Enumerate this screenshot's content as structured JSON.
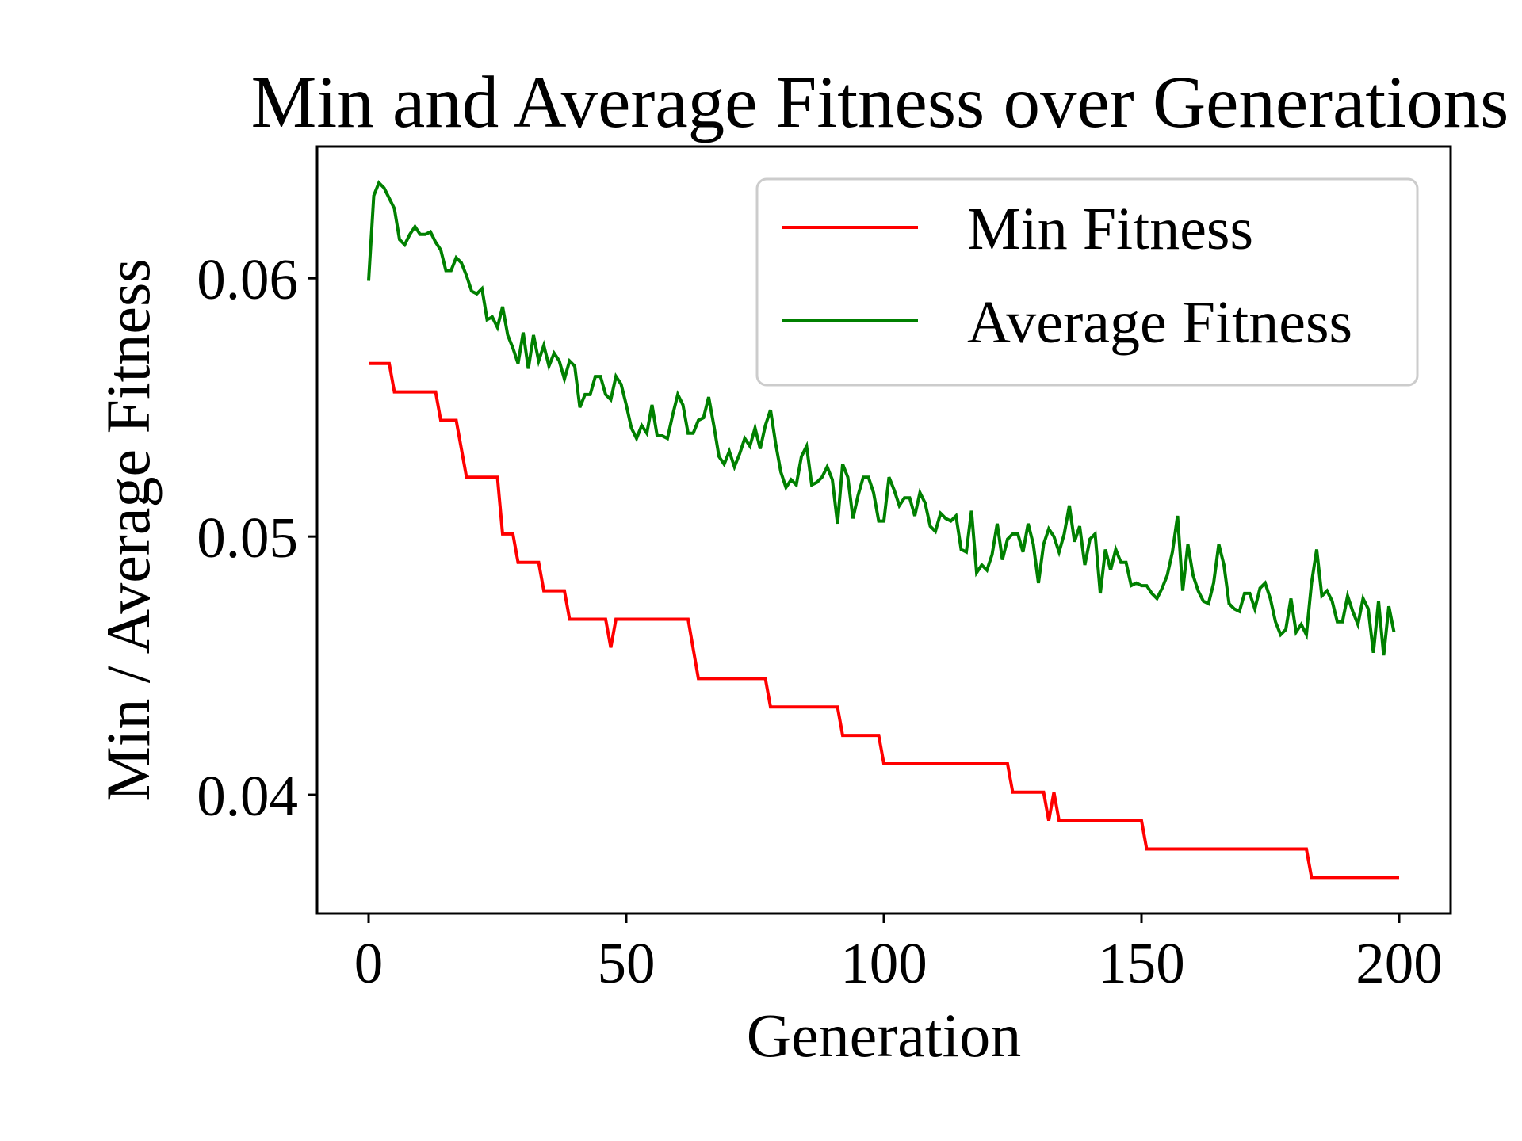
{
  "chart_data": {
    "type": "line",
    "title": "Min and Average Fitness over Generations",
    "xlabel": "Generation",
    "ylabel": "Min / Average Fitness",
    "xlim": [
      -10,
      210
    ],
    "ylim": [
      0.0354,
      0.0651
    ],
    "xticks": [
      0,
      50,
      100,
      150,
      200
    ],
    "yticks": [
      0.04,
      0.05,
      0.06
    ],
    "xtick_labels": [
      "0",
      "50",
      "100",
      "150",
      "200"
    ],
    "ytick_labels": [
      "0.04",
      "0.05",
      "0.06"
    ],
    "grid": false,
    "legend": {
      "position": "top-right"
    },
    "series": [
      {
        "name": "Min Fitness",
        "color": "#ff0000",
        "line_style": "step",
        "points": [
          [
            0,
            0.0567
          ],
          [
            4,
            0.0567
          ],
          [
            5,
            0.0556
          ],
          [
            13,
            0.0556
          ],
          [
            14,
            0.0545
          ],
          [
            17,
            0.0545
          ],
          [
            19,
            0.0523
          ],
          [
            25,
            0.0523
          ],
          [
            26,
            0.0501
          ],
          [
            28,
            0.0501
          ],
          [
            29,
            0.049
          ],
          [
            33,
            0.049
          ],
          [
            34,
            0.0479
          ],
          [
            38,
            0.0479
          ],
          [
            39,
            0.0468
          ],
          [
            46,
            0.0468
          ],
          [
            47,
            0.0457
          ],
          [
            48,
            0.0468
          ],
          [
            62,
            0.0468
          ],
          [
            64,
            0.0445
          ],
          [
            77,
            0.0445
          ],
          [
            78,
            0.0434
          ],
          [
            91,
            0.0434
          ],
          [
            92,
            0.0423
          ],
          [
            99,
            0.0423
          ],
          [
            100,
            0.0412
          ],
          [
            124,
            0.0412
          ],
          [
            125,
            0.0401
          ],
          [
            131,
            0.0401
          ],
          [
            132,
            0.039
          ],
          [
            133,
            0.0401
          ],
          [
            134,
            0.039
          ],
          [
            150,
            0.039
          ],
          [
            151,
            0.0379
          ],
          [
            182,
            0.0379
          ],
          [
            183,
            0.0368
          ],
          [
            200,
            0.0368
          ]
        ]
      },
      {
        "name": "Average Fitness",
        "color": "#008000",
        "line_style": "solid",
        "points": [
          [
            0,
            0.0599
          ],
          [
            1,
            0.0632
          ],
          [
            2,
            0.0637
          ],
          [
            3,
            0.0635
          ],
          [
            4,
            0.0631
          ],
          [
            5,
            0.0627
          ],
          [
            6,
            0.0615
          ],
          [
            7,
            0.0613
          ],
          [
            8,
            0.0617
          ],
          [
            9,
            0.062
          ],
          [
            10,
            0.0617
          ],
          [
            11,
            0.0617
          ],
          [
            12,
            0.0618
          ],
          [
            13,
            0.0614
          ],
          [
            14,
            0.0611
          ],
          [
            15,
            0.0603
          ],
          [
            16,
            0.0603
          ],
          [
            17,
            0.0608
          ],
          [
            18,
            0.0606
          ],
          [
            19,
            0.0601
          ],
          [
            20,
            0.0595
          ],
          [
            21,
            0.0594
          ],
          [
            22,
            0.0596
          ],
          [
            23,
            0.0584
          ],
          [
            24,
            0.0585
          ],
          [
            25,
            0.0581
          ],
          [
            26,
            0.0589
          ],
          [
            27,
            0.0578
          ],
          [
            28,
            0.0573
          ],
          [
            29,
            0.0567
          ],
          [
            30,
            0.0579
          ],
          [
            31,
            0.0565
          ],
          [
            32,
            0.0578
          ],
          [
            33,
            0.0568
          ],
          [
            34,
            0.0574
          ],
          [
            35,
            0.0566
          ],
          [
            36,
            0.0571
          ],
          [
            37,
            0.0568
          ],
          [
            38,
            0.0561
          ],
          [
            39,
            0.0568
          ],
          [
            40,
            0.0566
          ],
          [
            41,
            0.055
          ],
          [
            42,
            0.0555
          ],
          [
            43,
            0.0555
          ],
          [
            44,
            0.0562
          ],
          [
            45,
            0.0562
          ],
          [
            46,
            0.0555
          ],
          [
            47,
            0.0553
          ],
          [
            48,
            0.0562
          ],
          [
            49,
            0.0559
          ],
          [
            50,
            0.0551
          ],
          [
            51,
            0.0542
          ],
          [
            52,
            0.0538
          ],
          [
            53,
            0.0543
          ],
          [
            54,
            0.054
          ],
          [
            55,
            0.0551
          ],
          [
            56,
            0.0539
          ],
          [
            57,
            0.0539
          ],
          [
            58,
            0.0538
          ],
          [
            59,
            0.0547
          ],
          [
            60,
            0.0555
          ],
          [
            61,
            0.0551
          ],
          [
            62,
            0.054
          ],
          [
            63,
            0.054
          ],
          [
            64,
            0.0545
          ],
          [
            65,
            0.0546
          ],
          [
            66,
            0.0554
          ],
          [
            67,
            0.0543
          ],
          [
            68,
            0.0531
          ],
          [
            69,
            0.0528
          ],
          [
            70,
            0.0533
          ],
          [
            71,
            0.0527
          ],
          [
            72,
            0.0532
          ],
          [
            73,
            0.0538
          ],
          [
            74,
            0.0535
          ],
          [
            75,
            0.0542
          ],
          [
            76,
            0.0534
          ],
          [
            77,
            0.0543
          ],
          [
            78,
            0.0549
          ],
          [
            79,
            0.0536
          ],
          [
            80,
            0.0525
          ],
          [
            81,
            0.0519
          ],
          [
            82,
            0.0522
          ],
          [
            83,
            0.052
          ],
          [
            84,
            0.0531
          ],
          [
            85,
            0.0535
          ],
          [
            86,
            0.052
          ],
          [
            87,
            0.0521
          ],
          [
            88,
            0.0523
          ],
          [
            89,
            0.0527
          ],
          [
            90,
            0.0522
          ],
          [
            91,
            0.0505
          ],
          [
            92,
            0.0528
          ],
          [
            93,
            0.0523
          ],
          [
            94,
            0.0507
          ],
          [
            95,
            0.0516
          ],
          [
            96,
            0.0523
          ],
          [
            97,
            0.0523
          ],
          [
            98,
            0.0517
          ],
          [
            99,
            0.0506
          ],
          [
            100,
            0.0506
          ],
          [
            101,
            0.0523
          ],
          [
            102,
            0.0518
          ],
          [
            103,
            0.0512
          ],
          [
            104,
            0.0515
          ],
          [
            105,
            0.0515
          ],
          [
            106,
            0.0508
          ],
          [
            107,
            0.0517
          ],
          [
            108,
            0.0513
          ],
          [
            109,
            0.0504
          ],
          [
            110,
            0.0502
          ],
          [
            111,
            0.0509
          ],
          [
            112,
            0.0507
          ],
          [
            113,
            0.0506
          ],
          [
            114,
            0.0508
          ],
          [
            115,
            0.0495
          ],
          [
            116,
            0.0494
          ],
          [
            117,
            0.051
          ],
          [
            118,
            0.0486
          ],
          [
            119,
            0.0489
          ],
          [
            120,
            0.0487
          ],
          [
            121,
            0.0493
          ],
          [
            122,
            0.0505
          ],
          [
            123,
            0.0491
          ],
          [
            124,
            0.0499
          ],
          [
            125,
            0.0501
          ],
          [
            126,
            0.0501
          ],
          [
            127,
            0.0494
          ],
          [
            128,
            0.0505
          ],
          [
            129,
            0.0497
          ],
          [
            130,
            0.0482
          ],
          [
            131,
            0.0497
          ],
          [
            132,
            0.0503
          ],
          [
            133,
            0.05
          ],
          [
            134,
            0.0494
          ],
          [
            135,
            0.0501
          ],
          [
            136,
            0.0512
          ],
          [
            137,
            0.0498
          ],
          [
            138,
            0.0504
          ],
          [
            139,
            0.0489
          ],
          [
            140,
            0.0499
          ],
          [
            141,
            0.0501
          ],
          [
            142,
            0.0478
          ],
          [
            143,
            0.0495
          ],
          [
            144,
            0.0487
          ],
          [
            145,
            0.0495
          ],
          [
            146,
            0.049
          ],
          [
            147,
            0.049
          ],
          [
            148,
            0.0481
          ],
          [
            149,
            0.0482
          ],
          [
            150,
            0.0481
          ],
          [
            151,
            0.0481
          ],
          [
            152,
            0.0478
          ],
          [
            153,
            0.0476
          ],
          [
            154,
            0.048
          ],
          [
            155,
            0.0485
          ],
          [
            156,
            0.0494
          ],
          [
            157,
            0.0508
          ],
          [
            158,
            0.0479
          ],
          [
            159,
            0.0497
          ],
          [
            160,
            0.0485
          ],
          [
            161,
            0.0479
          ],
          [
            162,
            0.0475
          ],
          [
            163,
            0.0474
          ],
          [
            164,
            0.0482
          ],
          [
            165,
            0.0497
          ],
          [
            166,
            0.0489
          ],
          [
            167,
            0.0474
          ],
          [
            168,
            0.0472
          ],
          [
            169,
            0.0471
          ],
          [
            170,
            0.0478
          ],
          [
            171,
            0.0478
          ],
          [
            172,
            0.0472
          ],
          [
            173,
            0.048
          ],
          [
            174,
            0.0482
          ],
          [
            175,
            0.0476
          ],
          [
            176,
            0.0467
          ],
          [
            177,
            0.0462
          ],
          [
            178,
            0.0464
          ],
          [
            179,
            0.0476
          ],
          [
            180,
            0.0463
          ],
          [
            181,
            0.0466
          ],
          [
            182,
            0.0462
          ],
          [
            183,
            0.0482
          ],
          [
            184,
            0.0495
          ],
          [
            185,
            0.0477
          ],
          [
            186,
            0.0479
          ],
          [
            187,
            0.0475
          ],
          [
            188,
            0.0467
          ],
          [
            189,
            0.0467
          ],
          [
            190,
            0.0477
          ],
          [
            191,
            0.0471
          ],
          [
            192,
            0.0466
          ],
          [
            193,
            0.0476
          ],
          [
            194,
            0.0472
          ],
          [
            195,
            0.0455
          ],
          [
            196,
            0.0475
          ],
          [
            197,
            0.0454
          ],
          [
            198,
            0.0473
          ],
          [
            199,
            0.0463
          ]
        ]
      }
    ]
  }
}
